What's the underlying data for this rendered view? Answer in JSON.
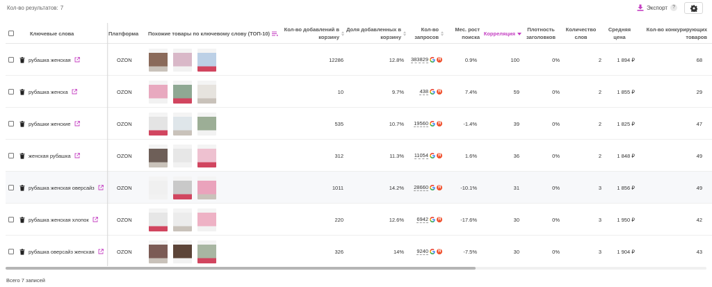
{
  "header": {
    "results_label": "Кол-во результатов:",
    "results_count": "7",
    "export_label": "Экспорт",
    "help_label": "?"
  },
  "accent_color": "#c43fc2",
  "columns": {
    "keywords": "Ключевые слова",
    "platform": "Платформа",
    "similar": "Похожие товары по ключевому слову (ТОП-10)",
    "cart_adds": "Кол-во добавлений в корзину",
    "cart_share": "Доля добавленных в корзину",
    "requests": "Кол-во запросов",
    "growth": "Мес. рост поиска",
    "correlation": "Корреляция",
    "title_density": "Плотность заголовков",
    "word_count": "Количество слов",
    "avg_price": "Средняя цена",
    "competitors": "Кол-во конкурирующих товаров"
  },
  "rows": [
    {
      "keyword": "рубашка женская",
      "platform": "OZON",
      "cart_adds": "12286",
      "cart_share": "12.8%",
      "requests": "383829",
      "growth": "0.9%",
      "correlation": "100",
      "density": "0%",
      "words": "2",
      "price": "1 894 ₽",
      "competitors": "68"
    },
    {
      "keyword": "рубашка женска",
      "platform": "OZON",
      "cart_adds": "10",
      "cart_share": "9.7%",
      "requests": "438",
      "growth": "7.4%",
      "correlation": "59",
      "density": "0%",
      "words": "2",
      "price": "1 855 ₽",
      "competitors": "29"
    },
    {
      "keyword": "рубашки женские",
      "platform": "OZON",
      "cart_adds": "535",
      "cart_share": "10.7%",
      "requests": "19560",
      "growth": "-1.4%",
      "correlation": "39",
      "density": "0%",
      "words": "2",
      "price": "1 825 ₽",
      "competitors": "47"
    },
    {
      "keyword": "женская рубашка",
      "platform": "OZON",
      "cart_adds": "312",
      "cart_share": "11.3%",
      "requests": "11054",
      "growth": "1.6%",
      "correlation": "36",
      "density": "0%",
      "words": "2",
      "price": "1 848 ₽",
      "competitors": "49"
    },
    {
      "keyword": "рубашка женская оверсайз",
      "platform": "OZON",
      "cart_adds": "1011",
      "cart_share": "14.2%",
      "requests": "28660",
      "growth": "-10.1%",
      "correlation": "31",
      "density": "0%",
      "words": "3",
      "price": "1 856 ₽",
      "competitors": "49"
    },
    {
      "keyword": "рубашка женская хлопок",
      "platform": "OZON",
      "cart_adds": "220",
      "cart_share": "12.6%",
      "requests": "6942",
      "growth": "-17.6%",
      "correlation": "30",
      "density": "0%",
      "words": "3",
      "price": "1 950 ₽",
      "competitors": "42"
    },
    {
      "keyword": "рубашка оверсайз женская",
      "platform": "OZON",
      "cart_adds": "326",
      "cart_share": "14%",
      "requests": "9240",
      "growth": "-7.5%",
      "correlation": "30",
      "density": "0%",
      "words": "3",
      "price": "1 904 ₽",
      "competitors": "43"
    }
  ],
  "footer": {
    "total_label": "Всего 7 записей"
  }
}
